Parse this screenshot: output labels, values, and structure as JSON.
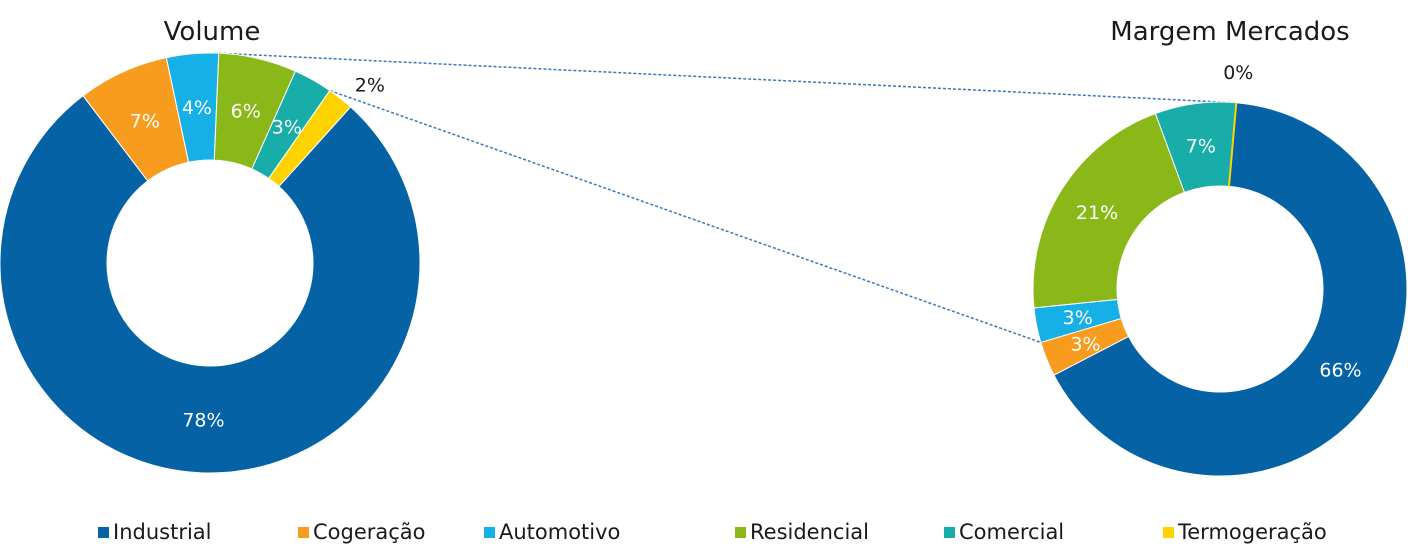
{
  "chart_data": [
    {
      "type": "pie",
      "subtype": "donut",
      "title": "Volume",
      "categories": [
        "Industrial",
        "Cogeração",
        "Automotivo",
        "Residencial",
        "Comercial",
        "Termogeração"
      ],
      "values": [
        78,
        7,
        4,
        6,
        3,
        2
      ],
      "labels": [
        "78%",
        "7%",
        "4%",
        "6%",
        "3%",
        "2%"
      ]
    },
    {
      "type": "pie",
      "subtype": "donut",
      "title": "Margem  Mercados",
      "categories": [
        "Industrial",
        "Cogeração",
        "Automotivo",
        "Residencial",
        "Comercial",
        "Termogeração"
      ],
      "values": [
        66,
        3,
        3,
        21,
        7,
        0
      ],
      "labels": [
        "66%",
        "3%",
        "3%",
        "21%",
        "7%",
        "0%"
      ]
    }
  ],
  "legend": {
    "placement": "bottom",
    "items": [
      {
        "label": "Industrial",
        "color": "#0563A5"
      },
      {
        "label": "Cogeração",
        "color": "#F79C1F"
      },
      {
        "label": "Automotivo",
        "color": "#17B0E6"
      },
      {
        "label": "Residencial",
        "color": "#8AB818"
      },
      {
        "label": "Comercial",
        "color": "#19ADA9"
      },
      {
        "label": "Termogeração",
        "color": "#FFD300"
      }
    ]
  },
  "colors": {
    "Industrial": "#0563A5",
    "Cogeração": "#F79C1F",
    "Automotivo": "#17B0E6",
    "Residencial": "#8AB818",
    "Comercial": "#19ADA9",
    "Termogeração": "#FFD300",
    "connector": "#3A78B8"
  }
}
